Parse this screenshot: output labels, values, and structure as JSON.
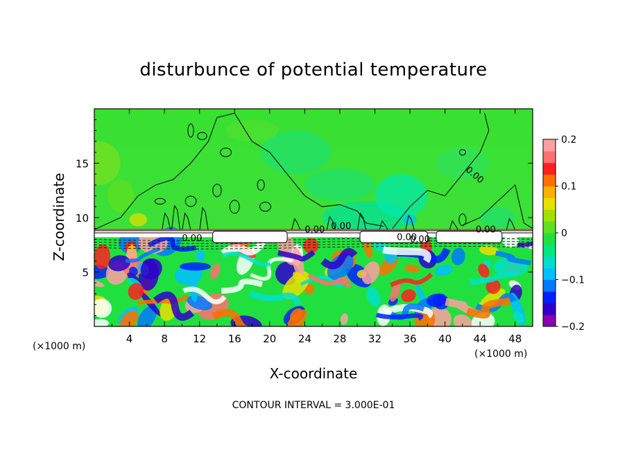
{
  "chart_data": {
    "type": "heatmap",
    "title": "disturbunce of potential temperature",
    "xlabel": "X-coordinate",
    "ylabel": "Z-coordinate",
    "x_unit": "(×1000 m)",
    "x_ticks": [
      4,
      8,
      12,
      16,
      20,
      24,
      28,
      32,
      36,
      40,
      44,
      48
    ],
    "y_ticks": [
      5,
      10,
      15
    ],
    "xlim": [
      0,
      50
    ],
    "ylim": [
      0,
      20
    ],
    "colorbar": {
      "min": -0.2,
      "max": 0.2,
      "tick_values": [
        0.2,
        0.1,
        0,
        -0.1,
        -0.2
      ],
      "tick_labels": [
        "0.2",
        "0.1",
        "0",
        "−0.1",
        "−0.2"
      ],
      "colors": [
        "#8a00b0",
        "#3000c8",
        "#0020ff",
        "#0078ff",
        "#00c0ff",
        "#00e0c8",
        "#00e880",
        "#20e040",
        "#60e020",
        "#a0e000",
        "#e8e000",
        "#ffb000",
        "#ff7000",
        "#ff2020",
        "#ff7070",
        "#ffa0a0"
      ]
    },
    "contour_labels": [
      "0.00",
      "0.00",
      "0.00",
      "0.00",
      "0.00",
      "0.00",
      "0.00"
    ],
    "contour_interval_text": "CONTOUR INTERVAL = 3.000E-01",
    "grid": false
  }
}
